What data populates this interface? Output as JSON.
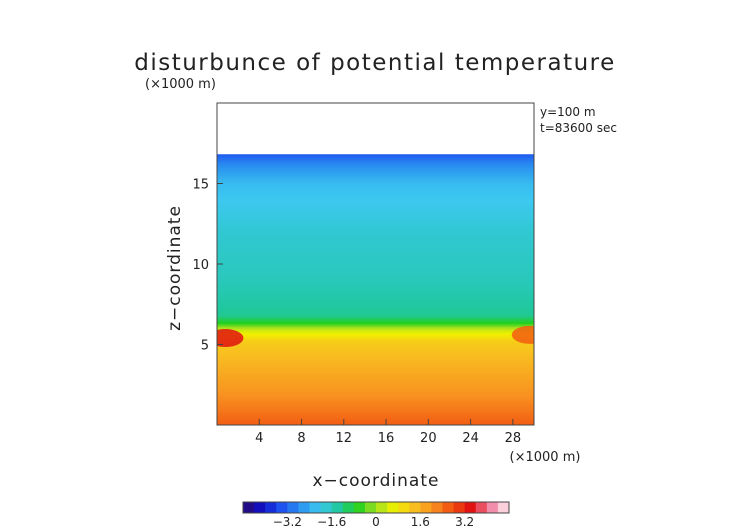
{
  "chart_data": {
    "type": "heatmap",
    "title": "disturbunce of potential temperature",
    "unit_label": "(×1000 m)",
    "annotations": [
      "y=100 m",
      "t=83600 sec"
    ],
    "xlabel": "x−coordinate",
    "ylabel": "z−coordinate",
    "x_unit_label": "(×1000 m)",
    "xlim": [
      0,
      30
    ],
    "ylim": [
      0,
      20
    ],
    "x_ticks": [
      4,
      8,
      12,
      16,
      20,
      24,
      28
    ],
    "y_ticks": [
      5,
      10,
      15
    ],
    "data_top_z": 16.8,
    "colorbar": {
      "range": [
        -4.8,
        4.8
      ],
      "tick_values": [
        -3.2,
        -1.6,
        0,
        1.6,
        3.2
      ],
      "tick_labels": [
        "−3.2",
        "−1.6",
        "0",
        "1.6",
        "3.2"
      ],
      "colors": [
        "#2a0a6e",
        "#1010c8",
        "#1e50f0",
        "#2a90f0",
        "#3cc8f0",
        "#20c8a0",
        "#20d020",
        "#a0e020",
        "#f0f000",
        "#f8c020",
        "#f89020",
        "#f05010",
        "#e01010",
        "#f080a0",
        "#fff0f4"
      ]
    },
    "field_profile": [
      {
        "z": 0,
        "value": 2.6
      },
      {
        "z": 2,
        "value": 2.0
      },
      {
        "z": 4,
        "value": 1.5
      },
      {
        "z": 5.2,
        "value": 1.2
      },
      {
        "z": 5.9,
        "value": 0.4
      },
      {
        "z": 6.3,
        "value": -0.6
      },
      {
        "z": 6.8,
        "value": -1.3
      },
      {
        "z": 9,
        "value": -1.6
      },
      {
        "z": 12,
        "value": -1.8
      },
      {
        "z": 15,
        "value": -2.2
      },
      {
        "z": 16.2,
        "value": -2.8
      },
      {
        "z": 16.8,
        "value": -3.3
      }
    ],
    "hot_spots": [
      {
        "x": 0.8,
        "z": 5.4,
        "value": 3.4
      },
      {
        "x": 29.6,
        "z": 5.6,
        "value": 2.6
      }
    ]
  }
}
